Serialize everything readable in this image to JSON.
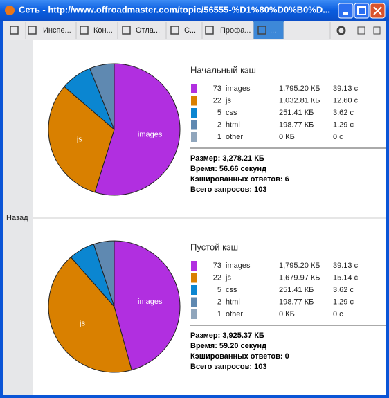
{
  "window": {
    "title": "Сеть - http://www.offroadmaster.com/topic/56555-%D1%80%D0%B0%D..."
  },
  "toolbar": {
    "tabs": [
      "Инспе...",
      "Кон...",
      "Отла...",
      "С...",
      "Профа...",
      "..."
    ]
  },
  "sidebar": {
    "back": "Назад"
  },
  "panels": [
    {
      "title": "Начальный кэш",
      "rows": [
        {
          "count": 73,
          "name": "images",
          "size": 1795.2,
          "size_label": "1,795.20 КБ",
          "time": "39.13 с",
          "color": "#b12fe0"
        },
        {
          "count": 22,
          "name": "js",
          "size": 1032.81,
          "size_label": "1,032.81 КБ",
          "time": "12.60 с",
          "color": "#d98000"
        },
        {
          "count": 5,
          "name": "css",
          "size": 251.41,
          "size_label": "251.41 КБ",
          "time": "3.62 с",
          "color": "#0b86d1"
        },
        {
          "count": 2,
          "name": "html",
          "size": 198.77,
          "size_label": "198.77 КБ",
          "time": "1.29 с",
          "color": "#5f89b1"
        },
        {
          "count": 1,
          "name": "other",
          "size": 0,
          "size_label": "0 КБ",
          "time": "0 с",
          "color": "#90a6bc"
        }
      ],
      "summary": [
        "Размер: 3,278.21 КБ",
        "Время: 56.66 секунд",
        "Кэшированных ответов: 6",
        "Всего запросов: 103"
      ]
    },
    {
      "title": "Пустой кэш",
      "rows": [
        {
          "count": 73,
          "name": "images",
          "size": 1795.2,
          "size_label": "1,795.20 КБ",
          "time": "39.13 с",
          "color": "#b12fe0"
        },
        {
          "count": 22,
          "name": "js",
          "size": 1679.97,
          "size_label": "1,679.97 КБ",
          "time": "15.14 с",
          "color": "#d98000"
        },
        {
          "count": 5,
          "name": "css",
          "size": 251.41,
          "size_label": "251.41 КБ",
          "time": "3.62 с",
          "color": "#0b86d1"
        },
        {
          "count": 2,
          "name": "html",
          "size": 198.77,
          "size_label": "198.77 КБ",
          "time": "1.29 с",
          "color": "#5f89b1"
        },
        {
          "count": 1,
          "name": "other",
          "size": 0,
          "size_label": "0 КБ",
          "time": "0 с",
          "color": "#90a6bc"
        }
      ],
      "summary": [
        "Размер: 3,925.37 КБ",
        "Время: 59.20 секунд",
        "Кэшированных ответов: 0",
        "Всего запросов: 103"
      ]
    }
  ]
}
